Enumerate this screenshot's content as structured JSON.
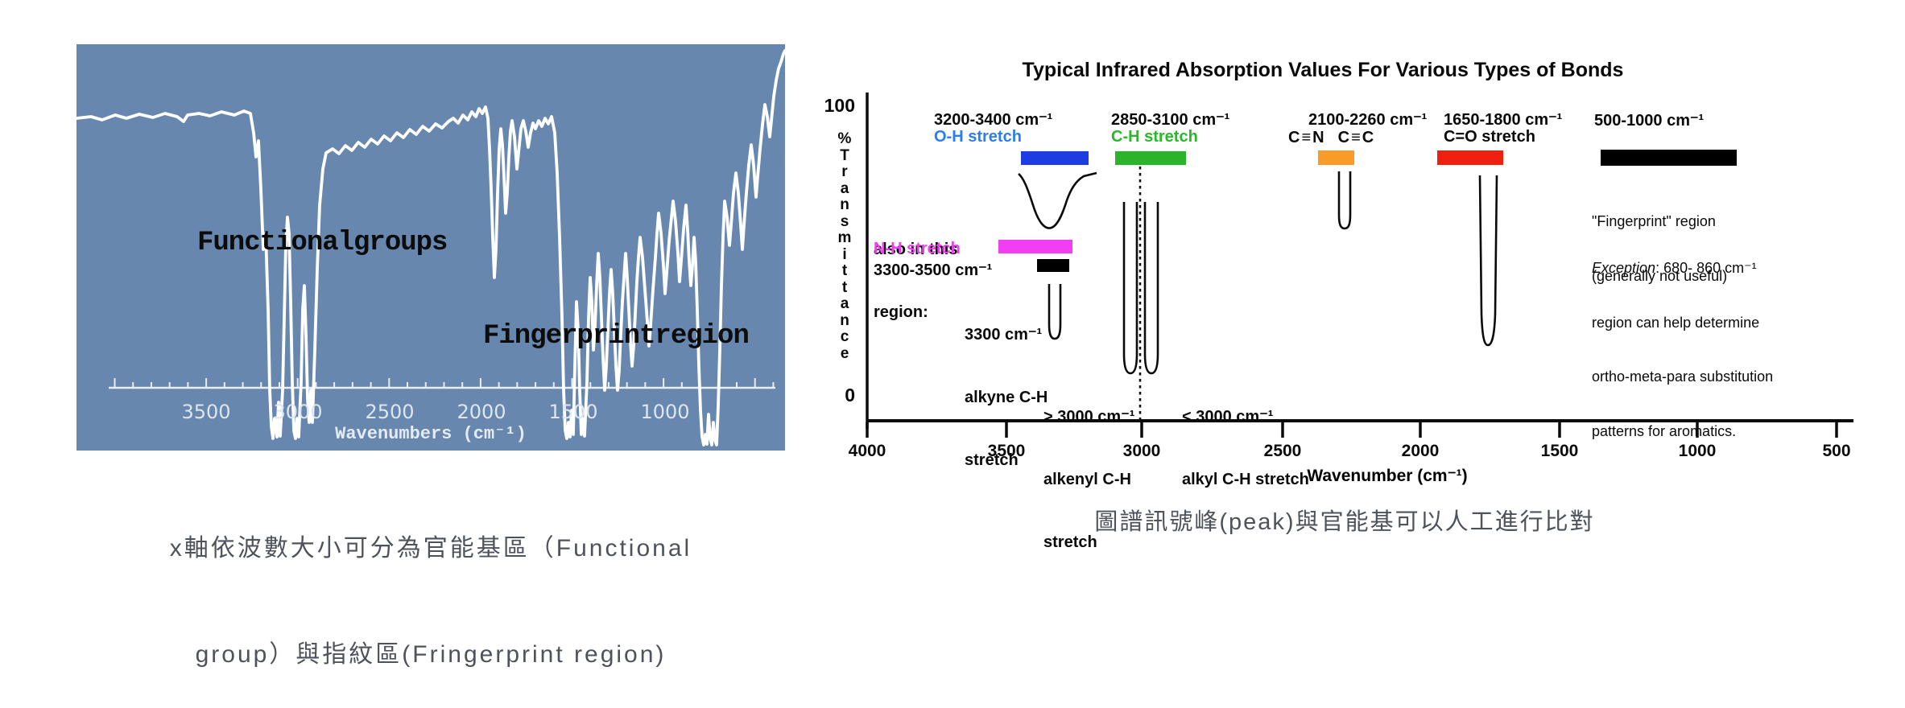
{
  "left_figure": {
    "functional_label": "Functionalgroups",
    "fingerprint_label": "Fingerprintregion",
    "x_ticks": [
      "3500",
      "3000",
      "2500",
      "2000",
      "1500",
      "1000"
    ],
    "x_axis_label": "Wavenumbers (cm⁻¹)",
    "caption_line1": "x軸依波數大小可分為官能基區（Functional",
    "caption_line2": "group）與指紋區(Fringerprint region)",
    "background_color": "#6787ae",
    "trace_color": "#ffffff"
  },
  "right_figure": {
    "title": "Typical Infrared Absorption Values For Various Types of Bonds",
    "y_axis": {
      "top": "100",
      "bottom": "0",
      "label": "%Transmittance"
    },
    "x_ticks": [
      "4000",
      "3500",
      "3000",
      "2500",
      "2000",
      "1500",
      "1000",
      "500"
    ],
    "x_axis_label": "Wavenumber (cm⁻¹)",
    "bands": {
      "oh": {
        "range": "3200-3400 cm⁻¹",
        "name": "O-H stretch",
        "color": "#1d3de2",
        "text_color": "#2a7df5"
      },
      "ch": {
        "range": "2850-3100 cm⁻¹",
        "name": "C-H stretch",
        "color": "#2cb32c",
        "text_color": "#27b927"
      },
      "nh": {
        "range": "3300-3500 cm⁻¹",
        "name": "N-H stretch",
        "color": "#f23ef2",
        "text_color": "#f23ef2"
      },
      "triple": {
        "range": "2100-2260 cm⁻¹",
        "name": "C≡N  C≡C",
        "color": "#f89b28",
        "text_color": "#0a0a0a"
      },
      "co": {
        "range": "1650-1800 cm⁻¹",
        "name": "C=O stretch",
        "color": "#f02010",
        "text_color": "#0a0a0a"
      },
      "fingerprint": {
        "range": "500-1000 cm⁻¹",
        "color": "#000000"
      }
    },
    "notes": {
      "also_l1": "also in this",
      "also_l2": "region:",
      "alkyne_l1": "3300 cm⁻¹",
      "alkyne_l2": "alkyne C-H",
      "alkyne_l3": "stretch",
      "alkenyl_l1": "> 3000 cm⁻¹",
      "alkenyl_l2": "alkenyl C-H",
      "alkenyl_l3": "stretch",
      "alkyl_l1": "< 3000 cm⁻¹",
      "alkyl_l2": "alkyl C-H stretch",
      "fp_l1": "\"Fingerprint\" region",
      "fp_l2": "(generally not useful)",
      "exc_word": "Exception",
      "exc_rest": ": 680- 860 cm⁻¹",
      "exc_l2": "region can help determine",
      "exc_l3": "ortho-meta-para substitution",
      "exc_l4": "patterns for aromatics."
    },
    "caption": "圖譜訊號峰(peak)與官能基可以人工進行比對"
  },
  "chart_data": [
    {
      "type": "line",
      "title": "",
      "xlabel": "Wavenumbers (cm⁻¹)",
      "ylabel": "",
      "x_tick_labels": [
        3500,
        3000,
        2500,
        2000,
        1500,
        1000
      ],
      "x_axis_direction": "wavenumber decreasing left to right",
      "annotations": [
        "Functionalgroups",
        "Fingerprintregion"
      ],
      "series": [
        {
          "name": "IR transmittance trace",
          "description": "white trace on blue background; strong absorption dips near 3100-2850, 1600-1450 and 800-650 cm⁻¹, many medium dips 1350-1000, steep rise at far right"
        }
      ],
      "grid": false,
      "legend": "none"
    },
    {
      "type": "bar",
      "title": "Typical Infrared Absorption Values For Various Types of Bonds",
      "xlabel": "Wavenumber (cm⁻¹)",
      "ylabel": "%Transmittance",
      "x_tick_labels": [
        4000,
        3500,
        3000,
        2500,
        2000,
        1500,
        1000,
        500
      ],
      "ylim_labels": [
        0,
        100
      ],
      "x_axis_direction": "wavenumber decreasing left to right",
      "bands": [
        {
          "label": "O-H stretch",
          "range_cm_1": [
            3200,
            3400
          ],
          "color": "#1d3de2"
        },
        {
          "label": "N-H stretch (also in this region)",
          "range_cm_1": [
            3300,
            3500
          ],
          "color": "#f23ef2"
        },
        {
          "label": "C-H stretch",
          "range_cm_1": [
            2850,
            3100
          ],
          "color": "#2cb32c"
        },
        {
          "label": "C≡N, C≡C",
          "range_cm_1": [
            2100,
            2260
          ],
          "color": "#f89b28"
        },
        {
          "label": "C=O stretch",
          "range_cm_1": [
            1650,
            1800
          ],
          "color": "#f02010"
        },
        {
          "label": "\"Fingerprint\" region (generally not useful)",
          "range_cm_1": [
            500,
            1000
          ],
          "color": "#000000"
        }
      ],
      "annotations": [
        "3300 cm⁻¹ alkyne C-H stretch",
        "> 3000 cm⁻¹ alkenyl C-H stretch",
        "< 3000 cm⁻¹ alkyl C-H stretch (dashed guide line at 3000 cm⁻¹)",
        "Exception: 680- 860 cm⁻¹ region can help determine ortho-meta-para substitution patterns for aromatics."
      ],
      "grid": false,
      "legend": "none"
    }
  ]
}
